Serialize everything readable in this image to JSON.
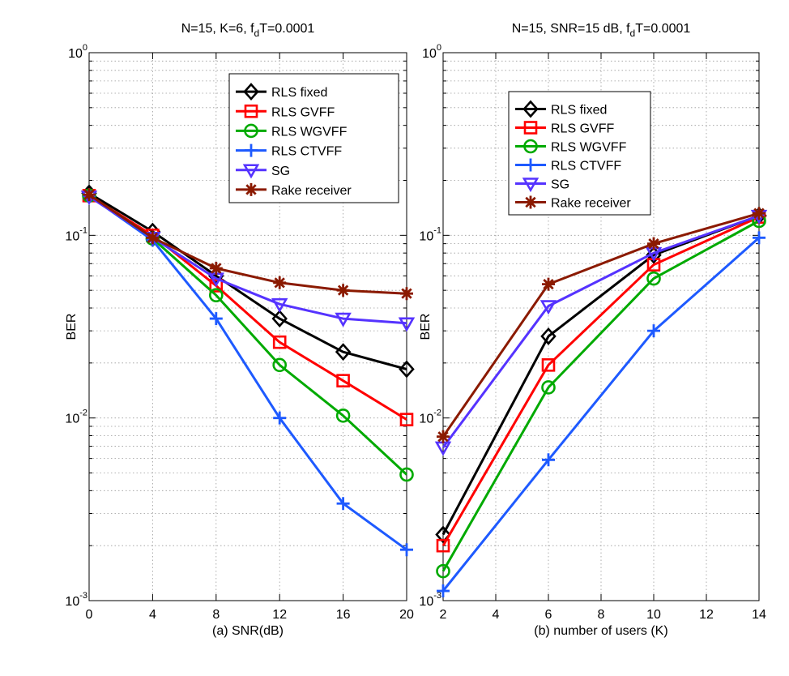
{
  "chart_data": [
    {
      "type": "line",
      "title_main": "N=15, K=6, f",
      "title_sub": "d",
      "title_tail": "T=0.0001",
      "xlabel": "(a) SNR(dB)",
      "ylabel": "BER",
      "yscale": "log",
      "xlim": [
        0,
        20
      ],
      "ylim": [
        0.001,
        1
      ],
      "xticks": [
        0,
        4,
        8,
        12,
        16,
        20
      ],
      "xtick_labels": [
        "0",
        "4",
        "8",
        "12",
        "16",
        "20"
      ],
      "yticks": [
        0.001,
        0.01,
        0.1,
        1
      ],
      "ytick_mantissa": [
        "10",
        "10",
        "10",
        "10"
      ],
      "ytick_exponent": [
        "-3",
        "-2",
        "-1",
        "0"
      ],
      "grid": true,
      "legend_position": "top-right",
      "x": [
        0,
        4,
        8,
        12,
        16,
        20
      ],
      "series": [
        {
          "name": "RLS fixed",
          "color": "#000000",
          "marker": "diamond",
          "values": [
            0.17,
            0.105,
            0.06,
            0.035,
            0.023,
            0.0185
          ]
        },
        {
          "name": "RLS GVFF",
          "color": "#ff0000",
          "marker": "square",
          "values": [
            0.165,
            0.1,
            0.053,
            0.026,
            0.016,
            0.0098
          ]
        },
        {
          "name": "RLS WGVFF",
          "color": "#00aa00",
          "marker": "circle",
          "values": [
            0.165,
            0.096,
            0.047,
            0.0195,
            0.0103,
            0.0049
          ]
        },
        {
          "name": "RLS CTVFF",
          "color": "#1e5aff",
          "marker": "plus",
          "values": [
            0.165,
            0.094,
            0.035,
            0.01,
            0.0034,
            0.0019
          ]
        },
        {
          "name": "SG",
          "color": "#5533ff",
          "marker": "triangle-down",
          "values": [
            0.163,
            0.097,
            0.058,
            0.042,
            0.035,
            0.033
          ]
        },
        {
          "name": "Rake receiver",
          "color": "#8b1a00",
          "marker": "star",
          "values": [
            0.167,
            0.097,
            0.066,
            0.055,
            0.05,
            0.048
          ]
        }
      ]
    },
    {
      "type": "line",
      "title_main": "N=15, SNR=15 dB, f",
      "title_sub": "d",
      "title_tail": "T=0.0001",
      "xlabel": "(b) number of users (K)",
      "ylabel": "BER",
      "yscale": "log",
      "xlim": [
        2,
        14
      ],
      "ylim": [
        0.001,
        1
      ],
      "xticks": [
        2,
        4,
        6,
        8,
        10,
        12,
        14
      ],
      "xtick_labels": [
        "2",
        "4",
        "6",
        "8",
        "10",
        "12",
        "14"
      ],
      "yticks": [
        0.001,
        0.01,
        0.1,
        1
      ],
      "ytick_mantissa": [
        "10",
        "10",
        "10",
        "10"
      ],
      "ytick_exponent": [
        "-3",
        "-2",
        "-1",
        "0"
      ],
      "grid": true,
      "legend_position": "top-left",
      "x": [
        2,
        6,
        10,
        14
      ],
      "series": [
        {
          "name": "RLS fixed",
          "color": "#000000",
          "marker": "diamond",
          "values": [
            0.0023,
            0.028,
            0.078,
            0.128
          ]
        },
        {
          "name": "RLS GVFF",
          "color": "#ff0000",
          "marker": "square",
          "values": [
            0.002,
            0.0195,
            0.069,
            0.126
          ]
        },
        {
          "name": "RLS WGVFF",
          "color": "#00aa00",
          "marker": "circle",
          "values": [
            0.00145,
            0.0147,
            0.058,
            0.12
          ]
        },
        {
          "name": "RLS CTVFF",
          "color": "#1e5aff",
          "marker": "plus",
          "values": [
            0.00113,
            0.0059,
            0.03,
            0.097
          ]
        },
        {
          "name": "SG",
          "color": "#5533ff",
          "marker": "triangle-down",
          "values": [
            0.0069,
            0.041,
            0.08,
            0.128
          ]
        },
        {
          "name": "Rake receiver",
          "color": "#8b1a00",
          "marker": "star",
          "values": [
            0.0079,
            0.054,
            0.09,
            0.132
          ]
        }
      ]
    }
  ]
}
